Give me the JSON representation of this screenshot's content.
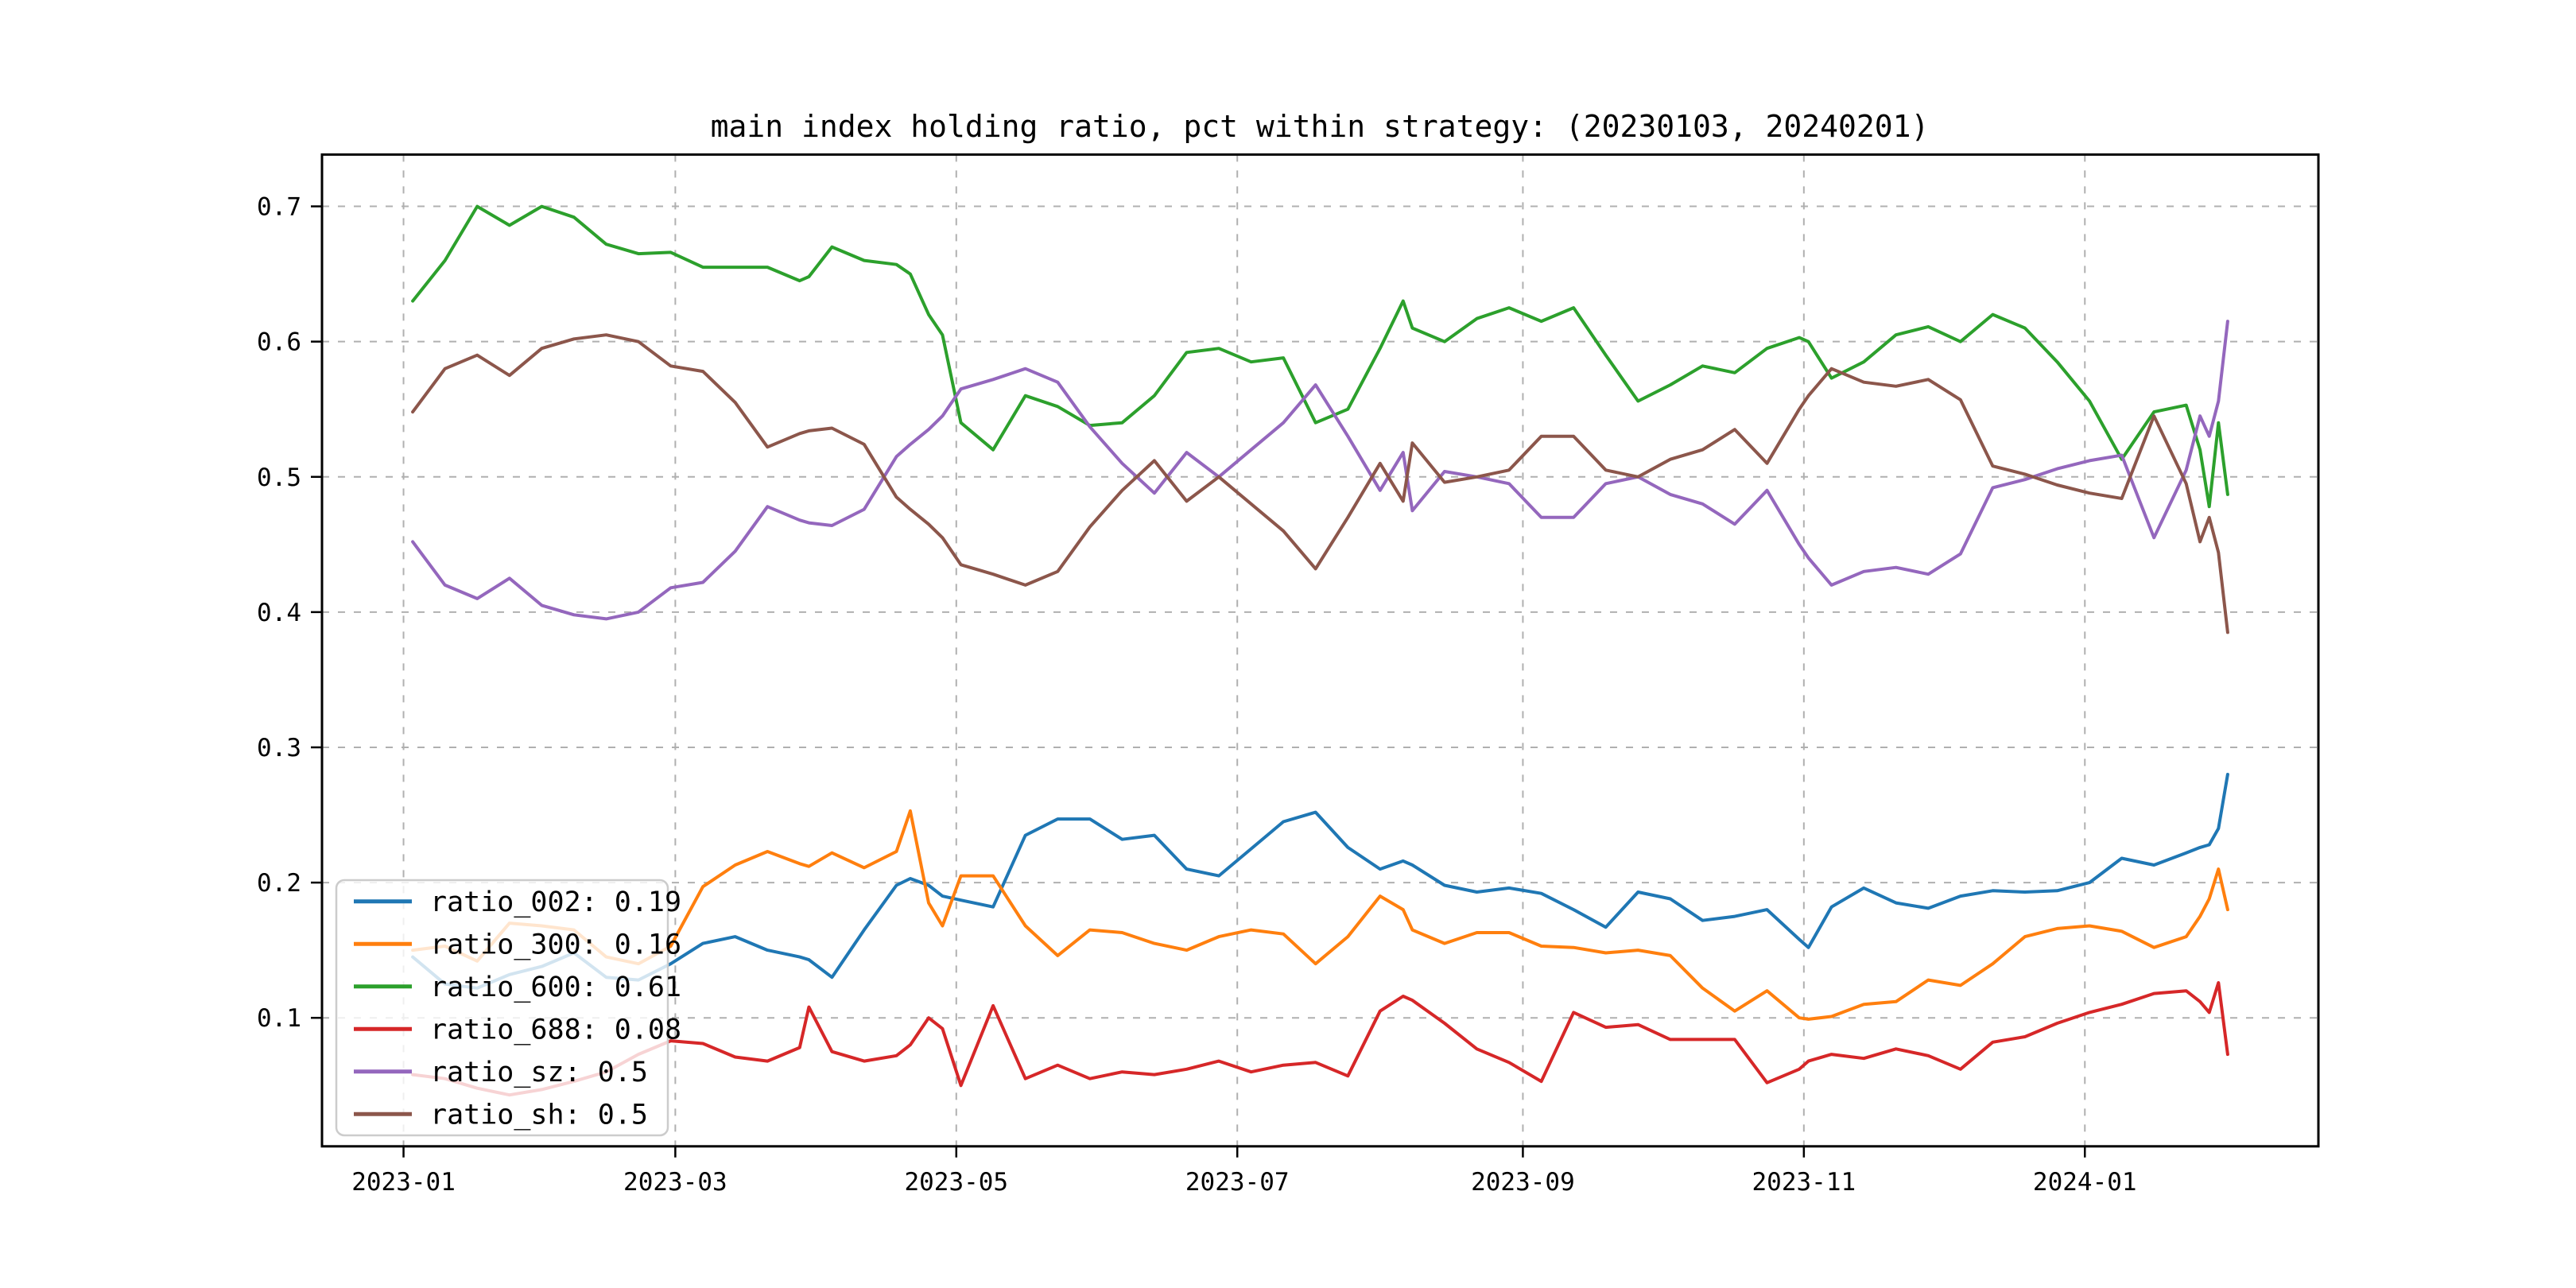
{
  "figure": {
    "title": "main index holding ratio, pct within strategy: (20230103, 20240201)",
    "background": "#ffffff"
  },
  "axes": {
    "spine_color": "#000000",
    "grid_color": "#b0b0b0",
    "x_ticks": [
      {
        "label": "2023-01",
        "day": -2
      },
      {
        "label": "2023-03",
        "day": 57
      },
      {
        "label": "2023-05",
        "day": 118
      },
      {
        "label": "2023-07",
        "day": 179
      },
      {
        "label": "2023-09",
        "day": 241
      },
      {
        "label": "2023-11",
        "day": 302
      },
      {
        "label": "2024-01",
        "day": 363
      }
    ],
    "y_ticks": [
      {
        "label": "0.1",
        "value": 0.1
      },
      {
        "label": "0.2",
        "value": 0.2
      },
      {
        "label": "0.3",
        "value": 0.3
      },
      {
        "label": "0.4",
        "value": 0.4
      },
      {
        "label": "0.5",
        "value": 0.5
      },
      {
        "label": "0.6",
        "value": 0.6
      },
      {
        "label": "0.7",
        "value": 0.7
      }
    ]
  },
  "legend": {
    "items": [
      {
        "label": "ratio_002: 0.19",
        "color": "#1f77b4"
      },
      {
        "label": "ratio_300: 0.16",
        "color": "#ff7f0e"
      },
      {
        "label": "ratio_600: 0.61",
        "color": "#2ca02c"
      },
      {
        "label": "ratio_688: 0.08",
        "color": "#d62728"
      },
      {
        "label": "ratio_sz: 0.5",
        "color": "#9467bd"
      },
      {
        "label": "ratio_sh: 0.5",
        "color": "#8c564b"
      }
    ]
  },
  "chart_data": {
    "type": "line",
    "title": "main index holding ratio, pct within strategy: (20230103, 20240201)",
    "xlabel": "",
    "ylabel": "",
    "date_range": [
      "20230103",
      "20240201"
    ],
    "x_unit": "days since 2023-01-03",
    "xlim_days": [
      -19.7,
      413.7
    ],
    "ylim": [
      0.005,
      0.7383
    ],
    "grid": true,
    "legend_position": "lower left",
    "x": [
      0,
      7,
      14,
      21,
      28,
      35,
      42,
      49,
      56,
      63,
      70,
      77,
      84,
      86,
      91,
      98,
      105,
      108,
      112,
      115,
      119,
      126,
      133,
      140,
      147,
      154,
      161,
      168,
      175,
      182,
      189,
      196,
      203,
      210,
      215,
      217,
      224,
      231,
      238,
      245,
      252,
      259,
      266,
      273,
      280,
      287,
      294,
      301,
      303,
      308,
      315,
      322,
      329,
      336,
      343,
      350,
      357,
      364,
      371,
      378,
      385,
      388,
      390,
      392,
      394
    ],
    "series": [
      {
        "name": "ratio_002",
        "legend": "ratio_002: 0.19",
        "mean": 0.19,
        "color": "#1f77b4",
        "values": [
          0.145,
          0.125,
          0.122,
          0.132,
          0.138,
          0.148,
          0.13,
          0.128,
          0.14,
          0.155,
          0.16,
          0.15,
          0.145,
          0.143,
          0.13,
          0.165,
          0.198,
          0.203,
          0.198,
          0.19,
          0.187,
          0.182,
          0.235,
          0.247,
          0.247,
          0.232,
          0.235,
          0.21,
          0.205,
          0.225,
          0.245,
          0.252,
          0.226,
          0.21,
          0.216,
          0.213,
          0.198,
          0.193,
          0.196,
          0.192,
          0.18,
          0.167,
          0.193,
          0.188,
          0.172,
          0.175,
          0.18,
          0.158,
          0.152,
          0.182,
          0.196,
          0.185,
          0.181,
          0.19,
          0.194,
          0.193,
          0.194,
          0.2,
          0.218,
          0.213,
          0.222,
          0.226,
          0.228,
          0.24,
          0.28
        ]
      },
      {
        "name": "ratio_300",
        "legend": "ratio_300: 0.16",
        "mean": 0.16,
        "color": "#ff7f0e",
        "values": [
          0.15,
          0.153,
          0.142,
          0.17,
          0.168,
          0.165,
          0.145,
          0.14,
          0.153,
          0.197,
          0.213,
          0.223,
          0.214,
          0.212,
          0.222,
          0.211,
          0.223,
          0.253,
          0.185,
          0.168,
          0.205,
          0.205,
          0.168,
          0.146,
          0.165,
          0.163,
          0.155,
          0.15,
          0.16,
          0.165,
          0.162,
          0.14,
          0.16,
          0.19,
          0.18,
          0.165,
          0.155,
          0.163,
          0.163,
          0.153,
          0.152,
          0.148,
          0.15,
          0.146,
          0.122,
          0.105,
          0.12,
          0.1,
          0.099,
          0.101,
          0.11,
          0.112,
          0.128,
          0.124,
          0.14,
          0.16,
          0.166,
          0.168,
          0.164,
          0.152,
          0.16,
          0.175,
          0.188,
          0.21,
          0.18
        ]
      },
      {
        "name": "ratio_600",
        "legend": "ratio_600: 0.61",
        "mean": 0.61,
        "color": "#2ca02c",
        "values": [
          0.63,
          0.66,
          0.7,
          0.686,
          0.7,
          0.692,
          0.672,
          0.665,
          0.666,
          0.655,
          0.655,
          0.655,
          0.645,
          0.648,
          0.67,
          0.66,
          0.657,
          0.65,
          0.62,
          0.605,
          0.54,
          0.52,
          0.56,
          0.552,
          0.538,
          0.54,
          0.56,
          0.592,
          0.595,
          0.585,
          0.588,
          0.54,
          0.55,
          0.595,
          0.63,
          0.61,
          0.6,
          0.617,
          0.625,
          0.615,
          0.625,
          0.59,
          0.556,
          0.568,
          0.582,
          0.577,
          0.595,
          0.603,
          0.6,
          0.573,
          0.585,
          0.605,
          0.611,
          0.6,
          0.62,
          0.61,
          0.585,
          0.556,
          0.513,
          0.548,
          0.553,
          0.52,
          0.478,
          0.54,
          0.487
        ]
      },
      {
        "name": "ratio_688",
        "legend": "ratio_688: 0.08",
        "mean": 0.08,
        "color": "#d62728",
        "values": [
          0.058,
          0.055,
          0.048,
          0.043,
          0.047,
          0.053,
          0.06,
          0.073,
          0.083,
          0.081,
          0.071,
          0.068,
          0.078,
          0.108,
          0.075,
          0.068,
          0.072,
          0.08,
          0.1,
          0.092,
          0.05,
          0.109,
          0.055,
          0.065,
          0.055,
          0.06,
          0.058,
          0.062,
          0.068,
          0.06,
          0.065,
          0.067,
          0.057,
          0.105,
          0.116,
          0.113,
          0.096,
          0.077,
          0.067,
          0.053,
          0.104,
          0.093,
          0.095,
          0.084,
          0.084,
          0.084,
          0.052,
          0.062,
          0.068,
          0.073,
          0.07,
          0.077,
          0.072,
          0.062,
          0.082,
          0.086,
          0.096,
          0.104,
          0.11,
          0.118,
          0.12,
          0.112,
          0.104,
          0.126,
          0.073
        ]
      },
      {
        "name": "ratio_sz",
        "legend": "ratio_sz: 0.5",
        "mean": 0.5,
        "color": "#9467bd",
        "values": [
          0.452,
          0.42,
          0.41,
          0.425,
          0.405,
          0.398,
          0.395,
          0.4,
          0.418,
          0.422,
          0.445,
          0.478,
          0.468,
          0.466,
          0.464,
          0.476,
          0.515,
          0.524,
          0.535,
          0.545,
          0.565,
          0.572,
          0.58,
          0.57,
          0.537,
          0.51,
          0.488,
          0.518,
          0.5,
          0.52,
          0.54,
          0.568,
          0.53,
          0.49,
          0.518,
          0.475,
          0.504,
          0.5,
          0.495,
          0.47,
          0.47,
          0.495,
          0.5,
          0.487,
          0.48,
          0.465,
          0.49,
          0.45,
          0.44,
          0.42,
          0.43,
          0.433,
          0.428,
          0.443,
          0.492,
          0.498,
          0.506,
          0.512,
          0.516,
          0.455,
          0.505,
          0.545,
          0.53,
          0.556,
          0.615
        ]
      },
      {
        "name": "ratio_sh",
        "legend": "ratio_sh: 0.5",
        "mean": 0.5,
        "color": "#8c564b",
        "values": [
          0.548,
          0.58,
          0.59,
          0.575,
          0.595,
          0.602,
          0.605,
          0.6,
          0.582,
          0.578,
          0.555,
          0.522,
          0.532,
          0.534,
          0.536,
          0.524,
          0.485,
          0.476,
          0.465,
          0.455,
          0.435,
          0.428,
          0.42,
          0.43,
          0.463,
          0.49,
          0.512,
          0.482,
          0.5,
          0.48,
          0.46,
          0.432,
          0.47,
          0.51,
          0.482,
          0.525,
          0.496,
          0.5,
          0.505,
          0.53,
          0.53,
          0.505,
          0.5,
          0.513,
          0.52,
          0.535,
          0.51,
          0.55,
          0.56,
          0.58,
          0.57,
          0.567,
          0.572,
          0.557,
          0.508,
          0.502,
          0.494,
          0.488,
          0.484,
          0.545,
          0.495,
          0.452,
          0.47,
          0.444,
          0.385
        ]
      }
    ]
  }
}
